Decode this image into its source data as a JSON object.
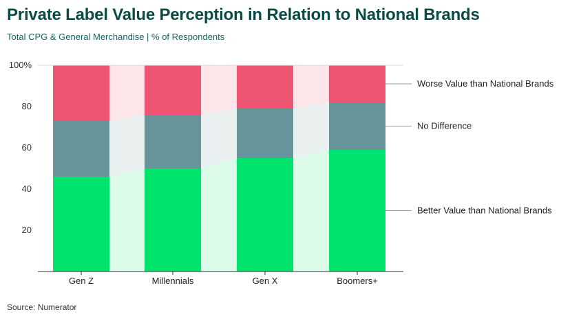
{
  "title": "Private Label Value Perception in Relation to National Brands",
  "subtitle": "Total CPG & General Merchandise | % of Respondents",
  "source": "Source: Numerator",
  "chart_data": {
    "type": "bar",
    "stacked": true,
    "categories": [
      "Gen Z",
      "Millennials",
      "Gen X",
      "Boomers+"
    ],
    "series": [
      {
        "name": "Better Value than National Brands",
        "color": "#00e36c",
        "connector_color": "#dcfbe8",
        "values": [
          46,
          50,
          55,
          59
        ]
      },
      {
        "name": "No Difference",
        "color": "#669498",
        "connector_color": "#eaf0f0",
        "values": [
          27,
          26,
          24,
          23
        ]
      },
      {
        "name": "Worse Value than National Brands",
        "color": "#ee5573",
        "connector_color": "#fde6ea",
        "values": [
          27,
          24,
          21,
          18
        ]
      }
    ],
    "ylim": [
      0,
      100
    ],
    "yticks": [
      "20",
      "40",
      "60",
      "80",
      "100%"
    ],
    "ytick_values": [
      20,
      40,
      60,
      80,
      100
    ],
    "legend_position": "right"
  }
}
